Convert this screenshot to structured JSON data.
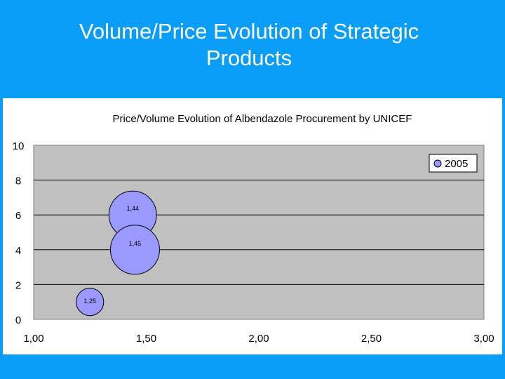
{
  "slide": {
    "title_line1": "Volume/Price Evolution of Strategic",
    "title_line2": "Products"
  },
  "chart_data": {
    "type": "bubble",
    "title": "Price/Volume Evolution of Albendazole Procurement by UNICEF",
    "xlabel": "",
    "ylabel": "",
    "xlim": [
      1.0,
      3.0
    ],
    "ylim": [
      0,
      10
    ],
    "x_ticks": [
      "1,00",
      "1,50",
      "2,00",
      "2,50",
      "3,00"
    ],
    "y_ticks": [
      "0",
      "2",
      "4",
      "6",
      "8",
      "10"
    ],
    "grid": "horizontal",
    "legend_position": "top-right",
    "series": [
      {
        "name": "2005",
        "color": "#9999ff",
        "points": [
          {
            "x": 1.25,
            "y": 1.0,
            "label": "1,25",
            "size": 1.0
          },
          {
            "x": 1.44,
            "y": 6.0,
            "label": "1,44",
            "size": 3.0
          },
          {
            "x": 1.45,
            "y": 4.0,
            "label": "1,45",
            "size": 3.2
          }
        ]
      }
    ],
    "colors": {
      "plot_background": "#c0c0c0",
      "gridline": "#000000",
      "panel_background": "#ffffff",
      "slide_background": "#0a9df7"
    }
  }
}
